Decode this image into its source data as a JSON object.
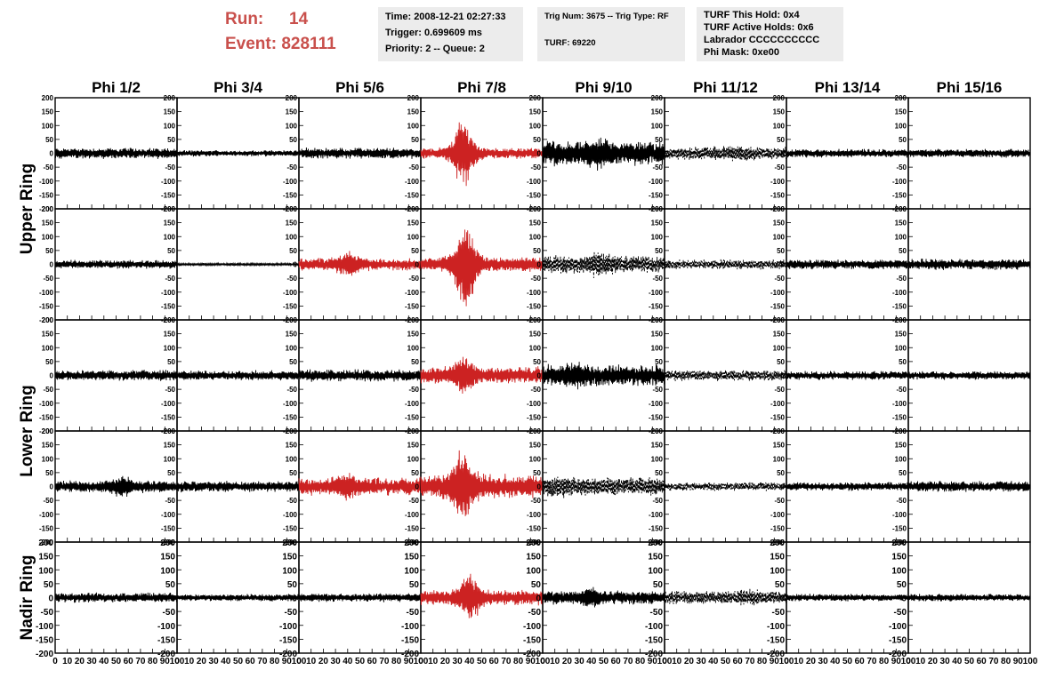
{
  "header": {
    "run_label": "Run:",
    "run_value": "14",
    "event_label": "Event:",
    "event_value": "828111",
    "time_box": [
      "Time: 2008-12-21 02:27:33",
      "Trigger: 0.699609 ms",
      "Priority: 2 -- Queue: 2"
    ],
    "trig_box": [
      "Trig Num: 3675 -- Trig Type: RF",
      "",
      "TURF: 69220"
    ],
    "turf_box": [
      "TURF This Hold: 0x4",
      "TURF Active Holds: 0x6",
      "Labrador CCCCCCCCCC",
      "Phi Mask: 0xe00"
    ]
  },
  "colors": {
    "title_red": "#c9504c",
    "trace_red": "#cc2222",
    "trace_black": "#000000",
    "box_bg": "#ececec"
  },
  "chart_data": {
    "type": "line",
    "columns": [
      "Phi 1/2",
      "Phi 3/4",
      "Phi 5/6",
      "Phi 7/8",
      "Phi 9/10",
      "Phi 11/12",
      "Phi 13/14",
      "Phi 15/16"
    ],
    "rows": [
      "Upper Ring",
      "Lower Ring",
      "Nadir Ring"
    ],
    "xlim": [
      0,
      100
    ],
    "ylim": [
      -200,
      200
    ],
    "x_ticks": [
      0,
      10,
      20,
      30,
      40,
      50,
      60,
      70,
      80,
      90,
      100
    ],
    "y_ticks": [
      200,
      150,
      100,
      50,
      0,
      -50,
      -100,
      -150,
      -200
    ],
    "grid": false,
    "panels": [
      [
        {
          "style": "solid",
          "color": "black",
          "amp": 18,
          "burst": 0
        },
        {
          "style": "solid",
          "color": "black",
          "amp": 10,
          "burst": 0
        },
        {
          "style": "solid",
          "color": "black",
          "amp": 18,
          "burst": 0
        },
        {
          "style": "solid",
          "color": "red",
          "amp": 18,
          "burst": 120,
          "burst_x": 35
        },
        {
          "style": "solid",
          "color": "black",
          "amp": 40,
          "burst": 20,
          "burst_x": 45
        },
        {
          "style": "dashed",
          "color": "black",
          "amp": 22,
          "burst": 8,
          "burst_x": 60
        },
        {
          "style": "solid",
          "color": "black",
          "amp": 14,
          "burst": 0
        },
        {
          "style": "solid",
          "color": "black",
          "amp": 14,
          "burst": 0
        }
      ],
      [
        {
          "style": "solid",
          "color": "black",
          "amp": 14,
          "burst": 0
        },
        {
          "style": "solid",
          "color": "black",
          "amp": 4,
          "burst": 0
        },
        {
          "style": "solid",
          "color": "red",
          "amp": 20,
          "burst": 35,
          "burst_x": 40
        },
        {
          "style": "solid",
          "color": "red",
          "amp": 25,
          "burst": 160,
          "burst_x": 37
        },
        {
          "style": "dashed",
          "color": "black",
          "amp": 30,
          "burst": 20,
          "burst_x": 45
        },
        {
          "style": "dashed",
          "color": "black",
          "amp": 16,
          "burst": 0
        },
        {
          "style": "solid",
          "color": "black",
          "amp": 16,
          "burst": 0
        },
        {
          "style": "solid",
          "color": "black",
          "amp": 18,
          "burst": 0
        }
      ],
      [
        {
          "style": "solid",
          "color": "black",
          "amp": 18,
          "burst": 0
        },
        {
          "style": "solid",
          "color": "black",
          "amp": 16,
          "burst": 0
        },
        {
          "style": "solid",
          "color": "black",
          "amp": 20,
          "burst": 0
        },
        {
          "style": "solid",
          "color": "red",
          "amp": 28,
          "burst": 50,
          "burst_x": 35
        },
        {
          "style": "solid",
          "color": "black",
          "amp": 35,
          "burst": 20,
          "burst_x": 25
        },
        {
          "style": "dashed",
          "color": "black",
          "amp": 18,
          "burst": 0
        },
        {
          "style": "solid",
          "color": "black",
          "amp": 14,
          "burst": 0
        },
        {
          "style": "solid",
          "color": "black",
          "amp": 14,
          "burst": 0
        }
      ],
      [
        {
          "style": "solid",
          "color": "black",
          "amp": 20,
          "burst": 25,
          "burst_x": 55
        },
        {
          "style": "solid",
          "color": "black",
          "amp": 18,
          "burst": 0
        },
        {
          "style": "solid",
          "color": "red",
          "amp": 28,
          "burst": 30,
          "burst_x": 40
        },
        {
          "style": "solid",
          "color": "red",
          "amp": 40,
          "burst": 120,
          "burst_x": 35
        },
        {
          "style": "dashed",
          "color": "black",
          "amp": 30,
          "burst": 15,
          "burst_x": 15
        },
        {
          "style": "dashed",
          "color": "black",
          "amp": 14,
          "burst": 0
        },
        {
          "style": "solid",
          "color": "black",
          "amp": 14,
          "burst": 0
        },
        {
          "style": "solid",
          "color": "black",
          "amp": 18,
          "burst": 0
        }
      ],
      [
        {
          "style": "solid",
          "color": "black",
          "amp": 16,
          "burst": 0
        },
        {
          "style": "solid",
          "color": "black",
          "amp": 12,
          "burst": 0
        },
        {
          "style": "solid",
          "color": "black",
          "amp": 14,
          "burst": 0
        },
        {
          "style": "solid",
          "color": "red",
          "amp": 25,
          "burst": 75,
          "burst_x": 40
        },
        {
          "style": "solid",
          "color": "black",
          "amp": 22,
          "burst": 20,
          "burst_x": 40
        },
        {
          "style": "dashed",
          "color": "black",
          "amp": 22,
          "burst": 10,
          "burst_x": 70
        },
        {
          "style": "solid",
          "color": "black",
          "amp": 12,
          "burst": 0
        },
        {
          "style": "solid",
          "color": "black",
          "amp": 12,
          "burst": 0
        }
      ]
    ]
  }
}
